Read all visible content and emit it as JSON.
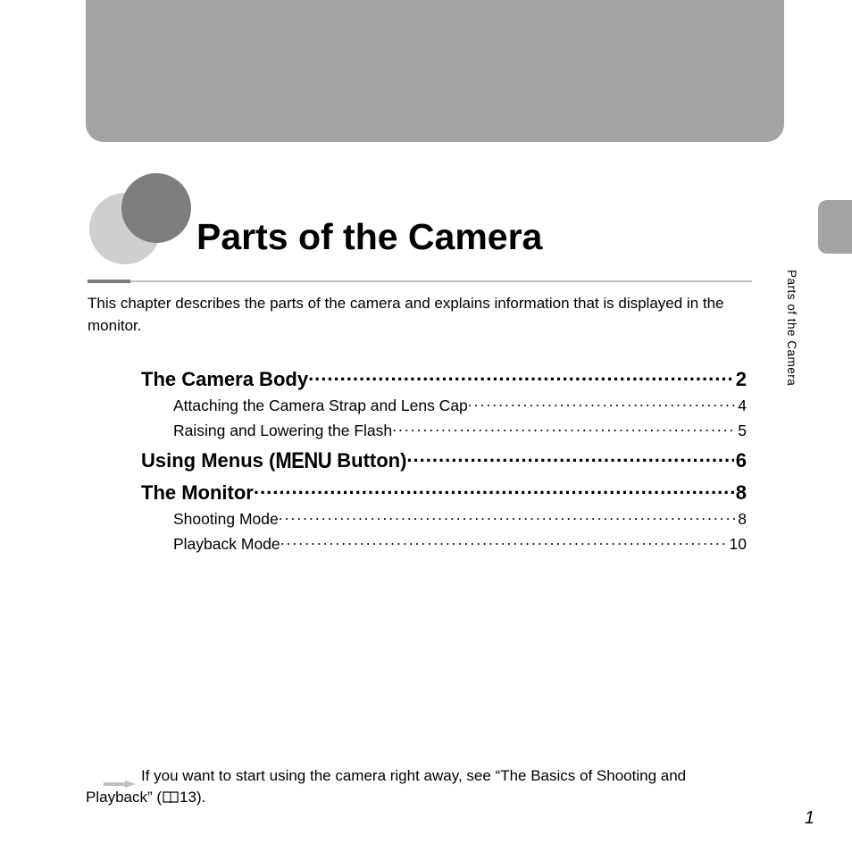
{
  "banner_color": "#a3a3a3",
  "circle_back_color": "#cfcfcf",
  "circle_front_color": "#7d7d7d",
  "title": "Parts of the Camera",
  "side_label": "Parts of the Camera",
  "intro": "This chapter describes the parts of the camera and explains information that is displayed in the monitor.",
  "toc": [
    {
      "level": 1,
      "label": "The Camera Body",
      "page": "2"
    },
    {
      "level": 2,
      "label": "Attaching the Camera Strap and Lens Cap",
      "page": "4"
    },
    {
      "level": 2,
      "label": "Raising and Lowering the Flash",
      "page": "5"
    },
    {
      "level": 1,
      "label_prefix": "Using Menus (",
      "label_menu": "MENU",
      "label_suffix": " Button)",
      "page": "6"
    },
    {
      "level": 1,
      "label": "The Monitor",
      "page": "8"
    },
    {
      "level": 2,
      "label": "Shooting Mode",
      "page": "8"
    },
    {
      "level": 2,
      "label": "Playback Mode",
      "page": "10"
    }
  ],
  "note_prefix": "If you want to start using the camera right away, see “The Basics of Shooting and Playback” (",
  "note_page_ref": "13",
  "note_suffix": ").",
  "page_number": "1"
}
